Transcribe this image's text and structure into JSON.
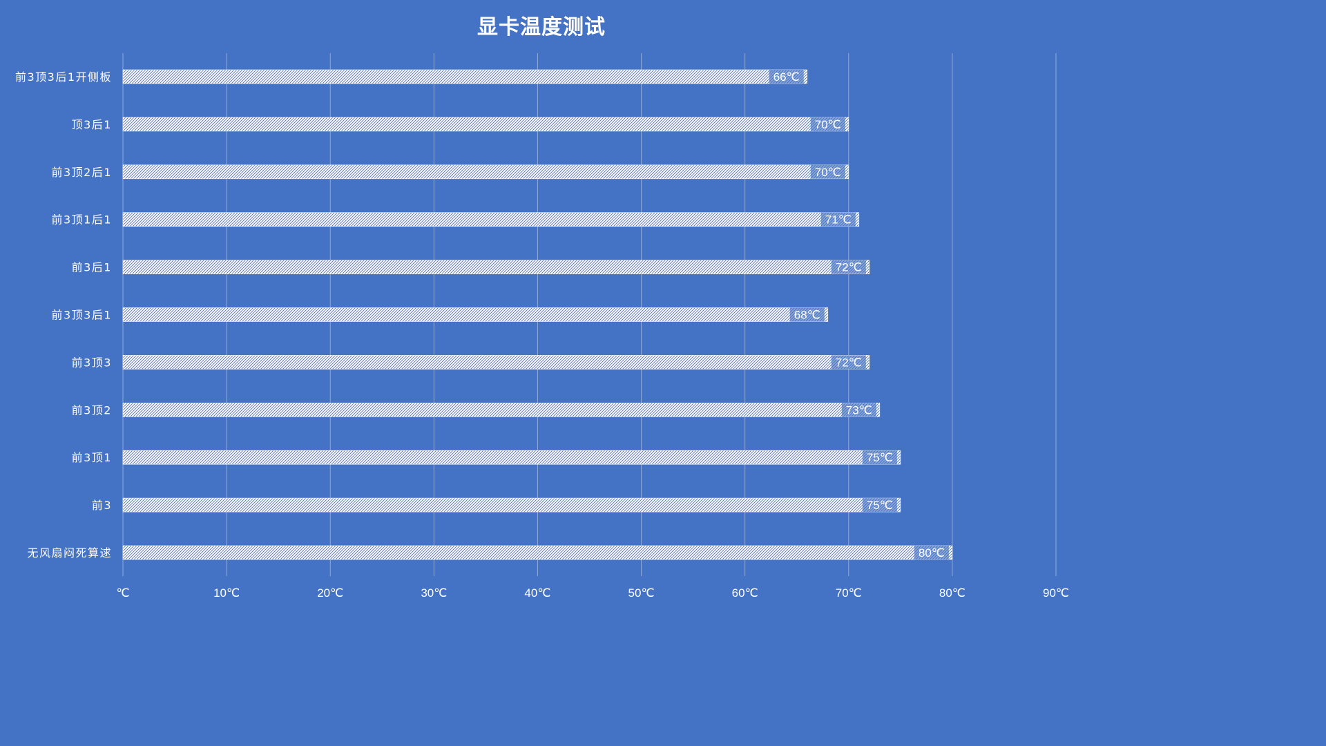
{
  "chart_data": {
    "type": "bar",
    "orientation": "horizontal",
    "title": "显卡温度测试",
    "categories": [
      "前3顶3后1开侧板",
      "顶3后1",
      "前3顶2后1",
      "前3顶1后1",
      "前3后1",
      "前3顶3后1",
      "前3顶3",
      "前3顶2",
      "前3顶1",
      "前3",
      "无风扇闷死算逑"
    ],
    "values": [
      66,
      70,
      70,
      71,
      72,
      68,
      72,
      73,
      75,
      75,
      80
    ],
    "data_labels": [
      "66℃",
      "70℃",
      "70℃",
      "71℃",
      "72℃",
      "68℃",
      "72℃",
      "73℃",
      "75℃",
      "75℃",
      "80℃"
    ],
    "x_ticks": [
      0,
      10,
      20,
      30,
      40,
      50,
      60,
      70,
      80,
      90
    ],
    "x_tick_labels": [
      "℃",
      "10℃",
      "20℃",
      "30℃",
      "40℃",
      "50℃",
      "60℃",
      "70℃",
      "80℃",
      "90℃"
    ],
    "xlim": [
      0,
      90
    ],
    "xlabel": "",
    "ylabel": "",
    "grid": "vertical",
    "legend": "none",
    "colors": {
      "background": "#4472c4",
      "bar_fill": "#ffffff",
      "bar_hatch": "#4472c4",
      "gridline": "#8fa9dc",
      "text": "#ffffff"
    }
  }
}
